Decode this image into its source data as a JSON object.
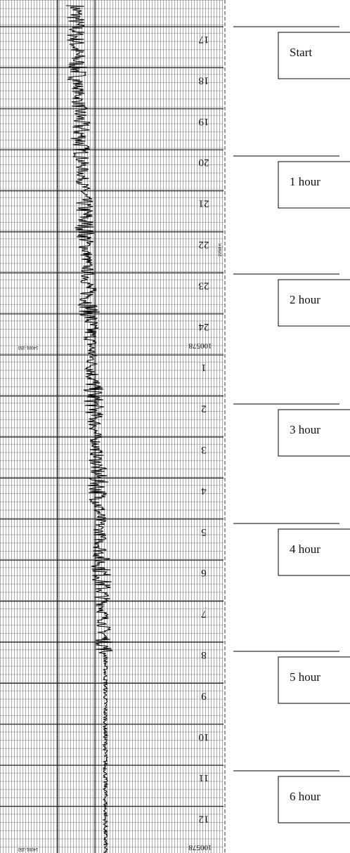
{
  "strip": {
    "hour_marks": [
      "17",
      "18",
      "19",
      "20",
      "21",
      "22",
      "23",
      "24",
      "1",
      "2",
      "3",
      "4",
      "5",
      "6",
      "7",
      "8",
      "9",
      "10",
      "11",
      "12"
    ],
    "chart_number": [
      "100578",
      "100578"
    ],
    "part_number": [
      "14001-150",
      "14001-150"
    ],
    "side_label": "2258 K"
  },
  "annotations": [
    {
      "label": "Start"
    },
    {
      "label": "1 hour"
    },
    {
      "label": "2 hour"
    },
    {
      "label": "3 hour"
    },
    {
      "label": "4 hour"
    },
    {
      "label": "5 hour"
    },
    {
      "label": "6 hour"
    }
  ]
}
